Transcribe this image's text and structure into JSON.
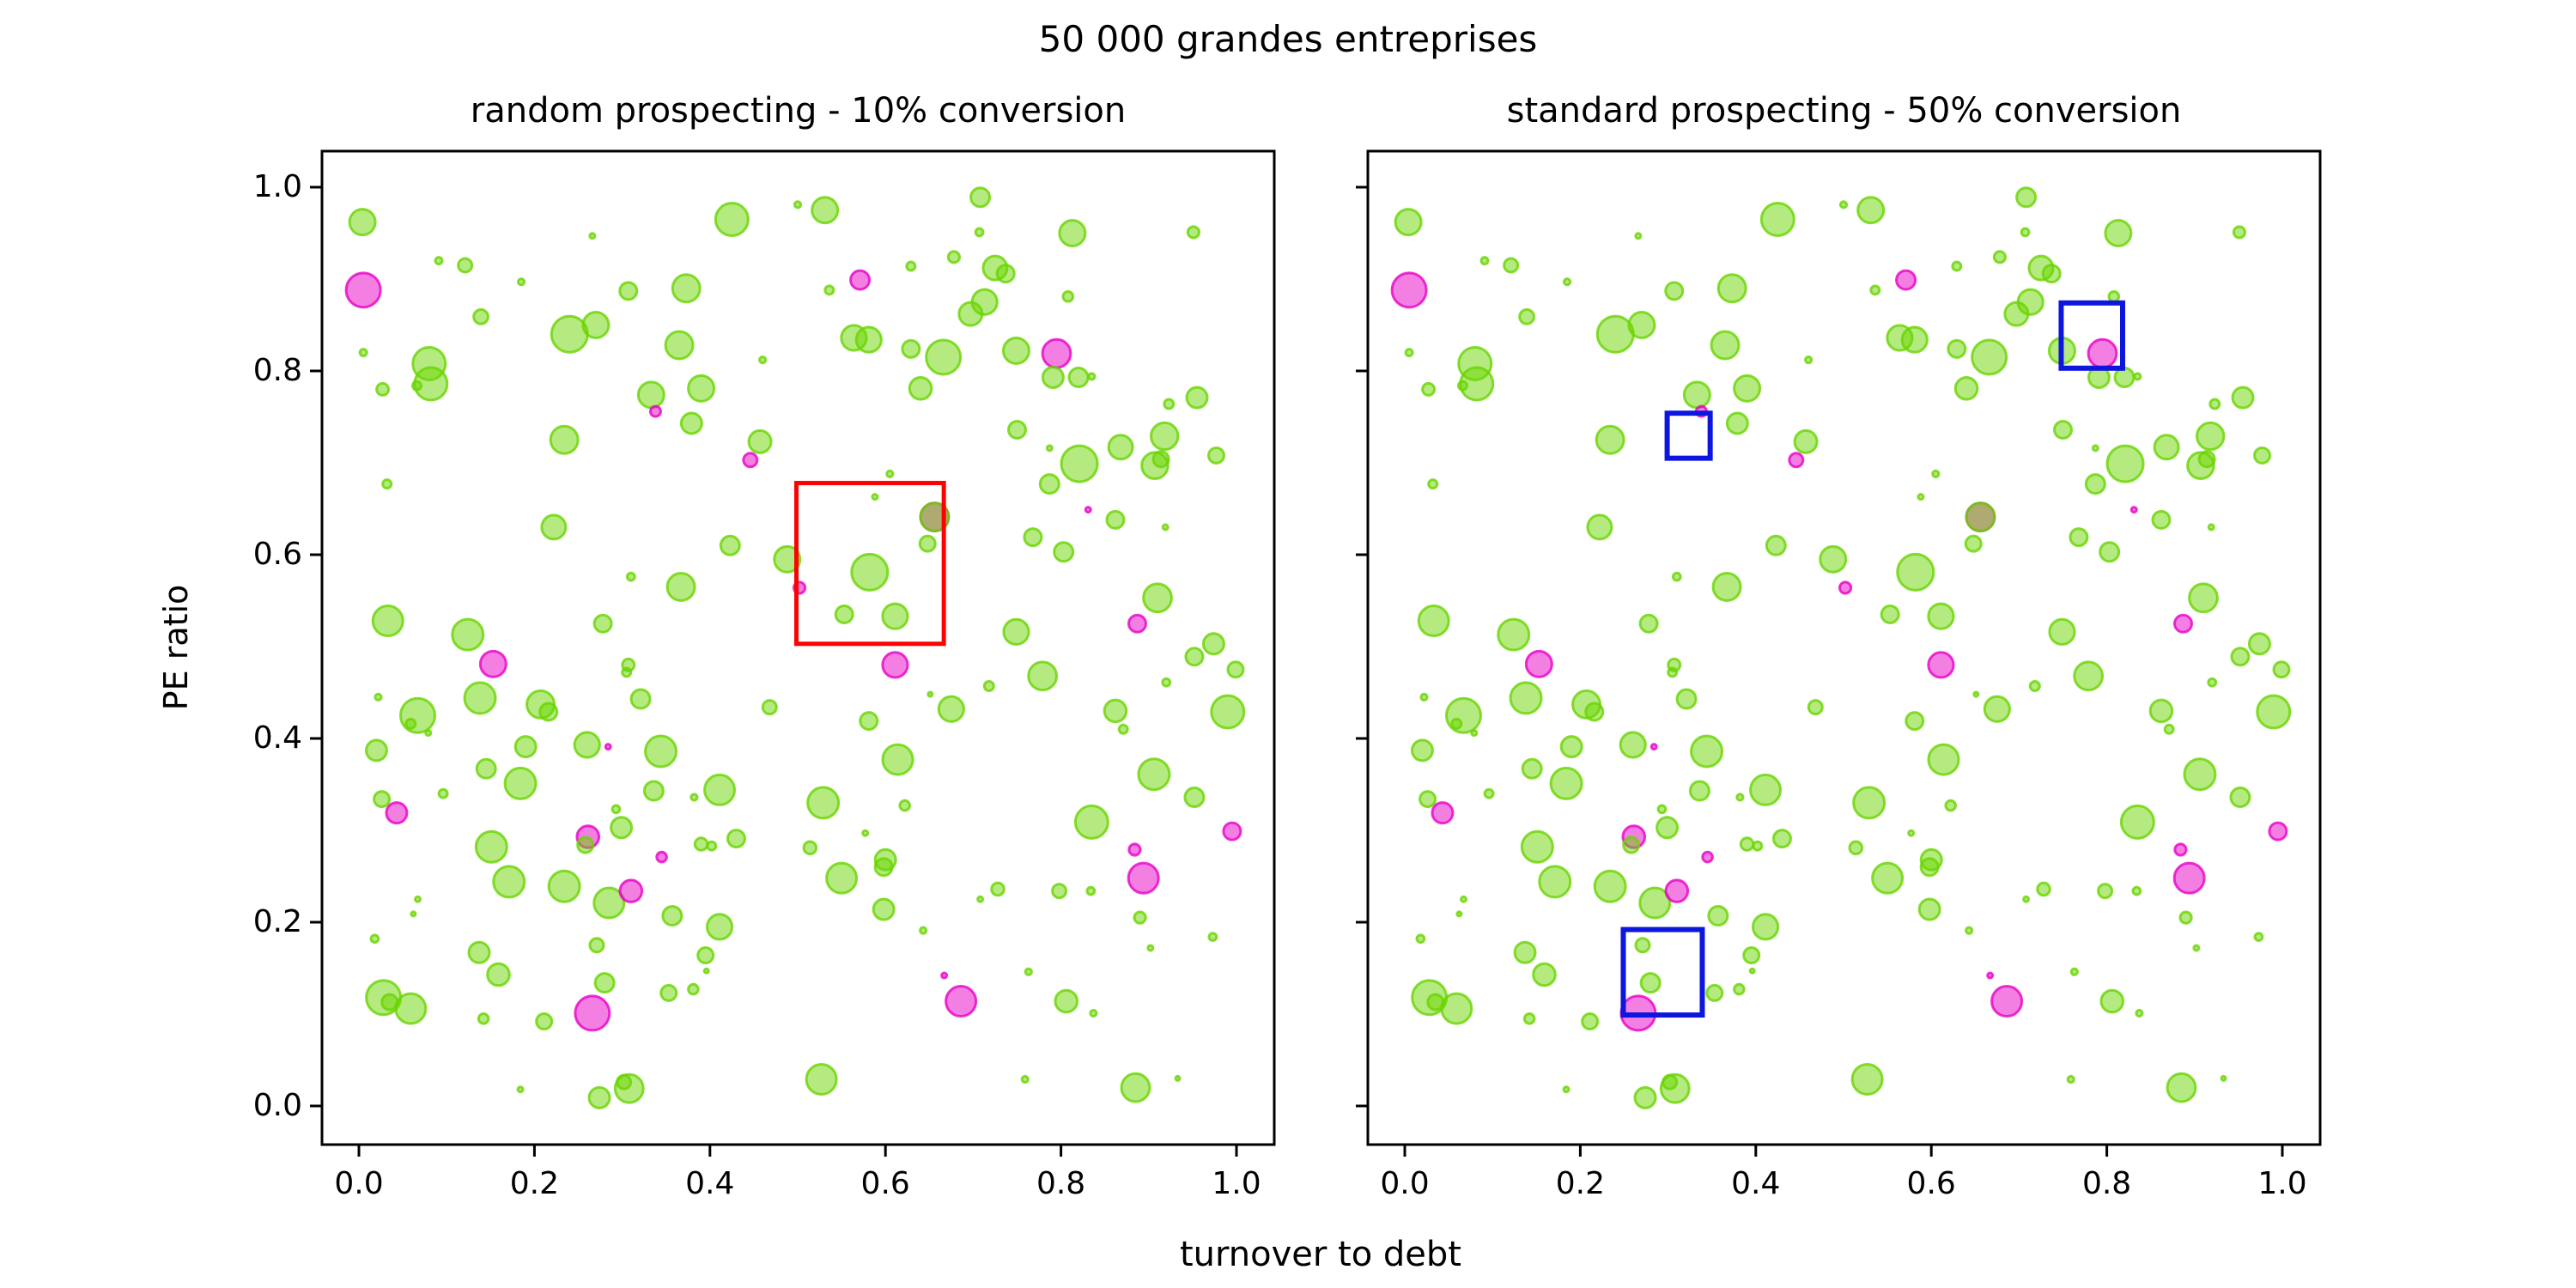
{
  "figure": {
    "title": "50 000 grandes entreprises"
  },
  "chart_data": {
    "type": "scatter",
    "title": "50 000 grandes entreprises",
    "xlabel": "turnover to debt",
    "ylabel": "PE ratio",
    "xlim": [
      -0.04,
      1.04
    ],
    "ylim": [
      -0.04,
      1.04
    ],
    "grid": false,
    "legend_position": "none",
    "xtick_labels": [
      "0.0",
      "0.2",
      "0.4",
      "0.6",
      "0.8",
      "1.0"
    ],
    "ytick_labels": [
      "0.0",
      "0.2",
      "0.4",
      "0.6",
      "0.8",
      "1.0"
    ],
    "tick_values": [
      0,
      0.2,
      0.4,
      0.6,
      0.8,
      1.0
    ],
    "colors": {
      "green_base": "#69d500",
      "magenta_base": "#e900c7",
      "red_rect": "#ff0000",
      "blue_rect": "#0d16dd",
      "spine": "#000000"
    },
    "point_format": "[x, y, radius_px, color_index] ; color 0=green bubble, 1=magenta bubble, 2=olive (green over magenta) bubble",
    "subplots": [
      {
        "title": "random prospecting - 10% conversion",
        "rect_color": "#ff0000",
        "rect_stroke": 5,
        "show_ytick_labels": true,
        "rects": [
          {
            "x": 0.4985,
            "y": 0.503,
            "w": 0.168,
            "h": 0.175
          }
        ]
      },
      {
        "title": "standard prospecting - 50% conversion",
        "rect_color": "#0d16dd",
        "rect_stroke": 6,
        "show_ytick_labels": false,
        "rects": [
          {
            "x": 0.748,
            "y": 0.803,
            "w": 0.07,
            "h": 0.071
          },
          {
            "x": 0.299,
            "y": 0.705,
            "w": 0.049,
            "h": 0.049
          },
          {
            "x": 0.249,
            "y": 0.099,
            "w": 0.09,
            "h": 0.093
          }
        ]
      }
    ],
    "points": [
      [
        0.004,
        0.962,
        15,
        0
      ],
      [
        0.005,
        0.888,
        20,
        1
      ],
      [
        0.091,
        0.92,
        4,
        0
      ],
      [
        0.121,
        0.915,
        8,
        0
      ],
      [
        0.185,
        0.897,
        3.6,
        0
      ],
      [
        0.139,
        0.859,
        8.4,
        0
      ],
      [
        0.24,
        0.84,
        21,
        0
      ],
      [
        0.27,
        0.85,
        15,
        0
      ],
      [
        0.307,
        0.887,
        10,
        0
      ],
      [
        0.373,
        0.89,
        16,
        0
      ],
      [
        0.365,
        0.828,
        16,
        0
      ],
      [
        0.425,
        0.965,
        19,
        0
      ],
      [
        0.5,
        0.981,
        3.6,
        0
      ],
      [
        0.266,
        0.947,
        3,
        0
      ],
      [
        0.005,
        0.82,
        4,
        0
      ],
      [
        0.08,
        0.808,
        19,
        0
      ],
      [
        0.082,
        0.786,
        19,
        0
      ],
      [
        0.066,
        0.784,
        5,
        0
      ],
      [
        0.027,
        0.78,
        7,
        0
      ],
      [
        0.333,
        0.774,
        15,
        0
      ],
      [
        0.338,
        0.756,
        6,
        1
      ],
      [
        0.39,
        0.781,
        15,
        0
      ],
      [
        0.379,
        0.743,
        12,
        0
      ],
      [
        0.234,
        0.725,
        16,
        0
      ],
      [
        0.457,
        0.723,
        13,
        0
      ],
      [
        0.446,
        0.703,
        8,
        1
      ],
      [
        0.46,
        0.812,
        3.6,
        0
      ],
      [
        0.032,
        0.677,
        5,
        0
      ],
      [
        0.222,
        0.63,
        14,
        0
      ],
      [
        0.423,
        0.61,
        11,
        0
      ],
      [
        0.367,
        0.565,
        16,
        0
      ],
      [
        0.488,
        0.595,
        15,
        0
      ],
      [
        0.502,
        0.564,
        6.6,
        1
      ],
      [
        0.033,
        0.528,
        17.5,
        0
      ],
      [
        0.124,
        0.513,
        18,
        0
      ],
      [
        0.278,
        0.525,
        10,
        0
      ],
      [
        0.31,
        0.576,
        4.4,
        0
      ],
      [
        0.531,
        0.975,
        15,
        0
      ],
      [
        0.708,
        0.989,
        11,
        0
      ],
      [
        0.813,
        0.95,
        15,
        0
      ],
      [
        0.707,
        0.951,
        4.4,
        0
      ],
      [
        0.951,
        0.951,
        6.6,
        0
      ],
      [
        0.678,
        0.924,
        6.6,
        0
      ],
      [
        0.629,
        0.914,
        5,
        0
      ],
      [
        0.571,
        0.899,
        11,
        1
      ],
      [
        0.536,
        0.888,
        5,
        0
      ],
      [
        0.725,
        0.912,
        14,
        0
      ],
      [
        0.737,
        0.906,
        10,
        0
      ],
      [
        0.713,
        0.875,
        14.6,
        0
      ],
      [
        0.697,
        0.862,
        13.5,
        0
      ],
      [
        0.808,
        0.881,
        5.8,
        0
      ],
      [
        0.564,
        0.836,
        14.6,
        0
      ],
      [
        0.581,
        0.834,
        14.6,
        0
      ],
      [
        0.629,
        0.824,
        10,
        0
      ],
      [
        0.666,
        0.815,
        20,
        0
      ],
      [
        0.749,
        0.822,
        15,
        0
      ],
      [
        0.795,
        0.819,
        16.4,
        1
      ],
      [
        0.791,
        0.793,
        12,
        0
      ],
      [
        0.82,
        0.793,
        11,
        0
      ],
      [
        0.835,
        0.794,
        3.6,
        0
      ],
      [
        0.64,
        0.781,
        12.8,
        0
      ],
      [
        0.955,
        0.771,
        12,
        0
      ],
      [
        0.923,
        0.764,
        5.5,
        0
      ],
      [
        0.75,
        0.736,
        10,
        0
      ],
      [
        0.868,
        0.717,
        14,
        0
      ],
      [
        0.918,
        0.729,
        15.7,
        0
      ],
      [
        0.907,
        0.697,
        15.3,
        0
      ],
      [
        0.914,
        0.704,
        9,
        0
      ],
      [
        0.821,
        0.699,
        21,
        0
      ],
      [
        0.977,
        0.708,
        9,
        0
      ],
      [
        0.787,
        0.716,
        3,
        0
      ],
      [
        0.787,
        0.677,
        11,
        0
      ],
      [
        0.831,
        0.649,
        3,
        1
      ],
      [
        0.862,
        0.638,
        10,
        0
      ],
      [
        0.919,
        0.63,
        3,
        0
      ],
      [
        0.768,
        0.619,
        10,
        0
      ],
      [
        0.803,
        0.603,
        11,
        0
      ],
      [
        0.91,
        0.553,
        16.4,
        0
      ],
      [
        0.887,
        0.525,
        10,
        1
      ],
      [
        0.749,
        0.516,
        14.6,
        0
      ],
      [
        0.974,
        0.503,
        12,
        0
      ],
      [
        0.605,
        0.688,
        3.6,
        0
      ],
      [
        0.588,
        0.663,
        3,
        0
      ],
      [
        0.656,
        0.641,
        16.4,
        2
      ],
      [
        0.648,
        0.612,
        9,
        0
      ],
      [
        0.582,
        0.581,
        21,
        0
      ],
      [
        0.553,
        0.535,
        10,
        0
      ],
      [
        0.611,
        0.533,
        14.6,
        0
      ],
      [
        0.153,
        0.481,
        15,
        1
      ],
      [
        0.022,
        0.445,
        3.6,
        0
      ],
      [
        0.067,
        0.425,
        20,
        0
      ],
      [
        0.059,
        0.416,
        5.5,
        0
      ],
      [
        0.079,
        0.406,
        3,
        0
      ],
      [
        0.138,
        0.444,
        18,
        0
      ],
      [
        0.02,
        0.387,
        12,
        0
      ],
      [
        0.207,
        0.437,
        16,
        0
      ],
      [
        0.216,
        0.429,
        10,
        0
      ],
      [
        0.19,
        0.391,
        12,
        0
      ],
      [
        0.26,
        0.393,
        14.6,
        0
      ],
      [
        0.284,
        0.391,
        3,
        1
      ],
      [
        0.344,
        0.386,
        18,
        0
      ],
      [
        0.145,
        0.367,
        11,
        0
      ],
      [
        0.184,
        0.351,
        18,
        0
      ],
      [
        0.336,
        0.343,
        11,
        0
      ],
      [
        0.411,
        0.344,
        17.5,
        0
      ],
      [
        0.382,
        0.336,
        3.6,
        0
      ],
      [
        0.026,
        0.334,
        9,
        0
      ],
      [
        0.043,
        0.319,
        12,
        1
      ],
      [
        0.096,
        0.34,
        5,
        0
      ],
      [
        0.293,
        0.323,
        4.4,
        0
      ],
      [
        0.299,
        0.303,
        12,
        0
      ],
      [
        0.261,
        0.293,
        12.8,
        1
      ],
      [
        0.258,
        0.284,
        9,
        0
      ],
      [
        0.151,
        0.282,
        18,
        0
      ],
      [
        0.345,
        0.271,
        5.8,
        1
      ],
      [
        0.39,
        0.285,
        7.3,
        0
      ],
      [
        0.402,
        0.283,
        5,
        0
      ],
      [
        0.43,
        0.291,
        10,
        0
      ],
      [
        0.171,
        0.244,
        18,
        0
      ],
      [
        0.234,
        0.239,
        18,
        0
      ],
      [
        0.285,
        0.221,
        17.5,
        0
      ],
      [
        0.31,
        0.234,
        12.8,
        1
      ],
      [
        0.357,
        0.207,
        11,
        0
      ],
      [
        0.411,
        0.195,
        14.6,
        0
      ],
      [
        0.067,
        0.225,
        3,
        0
      ],
      [
        0.062,
        0.209,
        2.5,
        0
      ],
      [
        0.018,
        0.182,
        4.4,
        0
      ],
      [
        0.137,
        0.167,
        12,
        0
      ],
      [
        0.159,
        0.143,
        12.8,
        0
      ],
      [
        0.271,
        0.175,
        8,
        0
      ],
      [
        0.395,
        0.164,
        9,
        0
      ],
      [
        0.396,
        0.147,
        2.5,
        0
      ],
      [
        0.28,
        0.134,
        11,
        0
      ],
      [
        0.353,
        0.123,
        9,
        0
      ],
      [
        0.381,
        0.127,
        5.8,
        0
      ],
      [
        0.028,
        0.118,
        20,
        0
      ],
      [
        0.035,
        0.113,
        9,
        0
      ],
      [
        0.059,
        0.106,
        17.5,
        0
      ],
      [
        0.266,
        0.101,
        20,
        1
      ],
      [
        0.142,
        0.095,
        5.8,
        0
      ],
      [
        0.211,
        0.092,
        9,
        0
      ],
      [
        0.184,
        0.018,
        3,
        0
      ],
      [
        0.274,
        0.009,
        12,
        0
      ],
      [
        0.308,
        0.019,
        16.4,
        0
      ],
      [
        0.302,
        0.026,
        8,
        0
      ],
      [
        0.468,
        0.434,
        8,
        0
      ],
      [
        0.611,
        0.48,
        14.6,
        1
      ],
      [
        0.779,
        0.468,
        16.4,
        0
      ],
      [
        0.718,
        0.457,
        5.5,
        0
      ],
      [
        0.651,
        0.448,
        2.5,
        0
      ],
      [
        0.675,
        0.432,
        14.6,
        0
      ],
      [
        0.581,
        0.419,
        10,
        0
      ],
      [
        0.614,
        0.377,
        17.5,
        0
      ],
      [
        0.99,
        0.429,
        19,
        0
      ],
      [
        0.862,
        0.43,
        12.8,
        0
      ],
      [
        0.871,
        0.41,
        5,
        0
      ],
      [
        0.92,
        0.461,
        4.4,
        0
      ],
      [
        0.952,
        0.489,
        10,
        0
      ],
      [
        0.999,
        0.475,
        9,
        0
      ],
      [
        0.906,
        0.361,
        18,
        0
      ],
      [
        0.952,
        0.336,
        11,
        0
      ],
      [
        0.529,
        0.33,
        18,
        0
      ],
      [
        0.622,
        0.327,
        5.8,
        0
      ],
      [
        0.835,
        0.309,
        19,
        0
      ],
      [
        0.995,
        0.299,
        10,
        1
      ],
      [
        0.577,
        0.297,
        3,
        0
      ],
      [
        0.514,
        0.281,
        7.3,
        0
      ],
      [
        0.6,
        0.268,
        12,
        0
      ],
      [
        0.598,
        0.26,
        10,
        0
      ],
      [
        0.55,
        0.248,
        17.5,
        0
      ],
      [
        0.598,
        0.214,
        12,
        0
      ],
      [
        0.884,
        0.279,
        6.6,
        1
      ],
      [
        0.894,
        0.248,
        17.5,
        1
      ],
      [
        0.728,
        0.236,
        7.3,
        0
      ],
      [
        0.708,
        0.225,
        3,
        0
      ],
      [
        0.798,
        0.234,
        8,
        0
      ],
      [
        0.834,
        0.234,
        4.4,
        0
      ],
      [
        0.89,
        0.205,
        6.6,
        0
      ],
      [
        0.643,
        0.191,
        3.6,
        0
      ],
      [
        0.973,
        0.184,
        4.4,
        0
      ],
      [
        0.902,
        0.172,
        3,
        0
      ],
      [
        0.763,
        0.146,
        3.6,
        0
      ],
      [
        0.667,
        0.142,
        3,
        1
      ],
      [
        0.686,
        0.114,
        17.5,
        1
      ],
      [
        0.806,
        0.114,
        12.8,
        0
      ],
      [
        0.837,
        0.101,
        3.6,
        0
      ],
      [
        0.527,
        0.029,
        17.5,
        0
      ],
      [
        0.759,
        0.029,
        3.6,
        0
      ],
      [
        0.885,
        0.02,
        16.4,
        0
      ],
      [
        0.933,
        0.03,
        2.5,
        0
      ],
      [
        0.307,
        0.48,
        7,
        0
      ],
      [
        0.305,
        0.472,
        5,
        0
      ],
      [
        0.321,
        0.443,
        11,
        0
      ]
    ]
  }
}
